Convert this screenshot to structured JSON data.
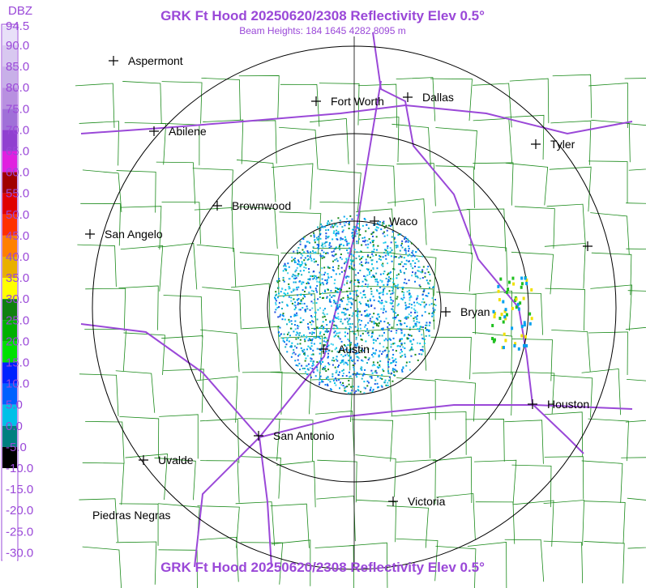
{
  "header": {
    "title": "GRK Ft Hood 20250620/2308 Reflectivity Elev 0.5°",
    "subtitle": "Beam Heights: 184 1645 4282 8095 m"
  },
  "scale": {
    "unit": "DBZ",
    "labels": [
      "94.5",
      "90.0",
      "85.0",
      "80.0",
      "75.0",
      "70.0",
      "65.0",
      "60.0",
      "55.0",
      "50.0",
      "45.0",
      "40.0",
      "35.0",
      "30.0",
      "25.0",
      "20.0",
      "15.0",
      "10.0",
      "5.0",
      "0.0",
      "-5.0",
      "-10.0",
      "-15.0",
      "-20.0",
      "-25.0",
      "-30.0"
    ]
  },
  "cities": [
    "Aspermont",
    "Fort Worth",
    "Dallas",
    "Abilene",
    "Tyler",
    "Brownwood",
    "Waco",
    "San Angelo",
    "Bryan",
    "Austin",
    "Houston",
    "San Antonio",
    "Uvalde",
    "Victoria",
    "Piedras Negras"
  ]
}
